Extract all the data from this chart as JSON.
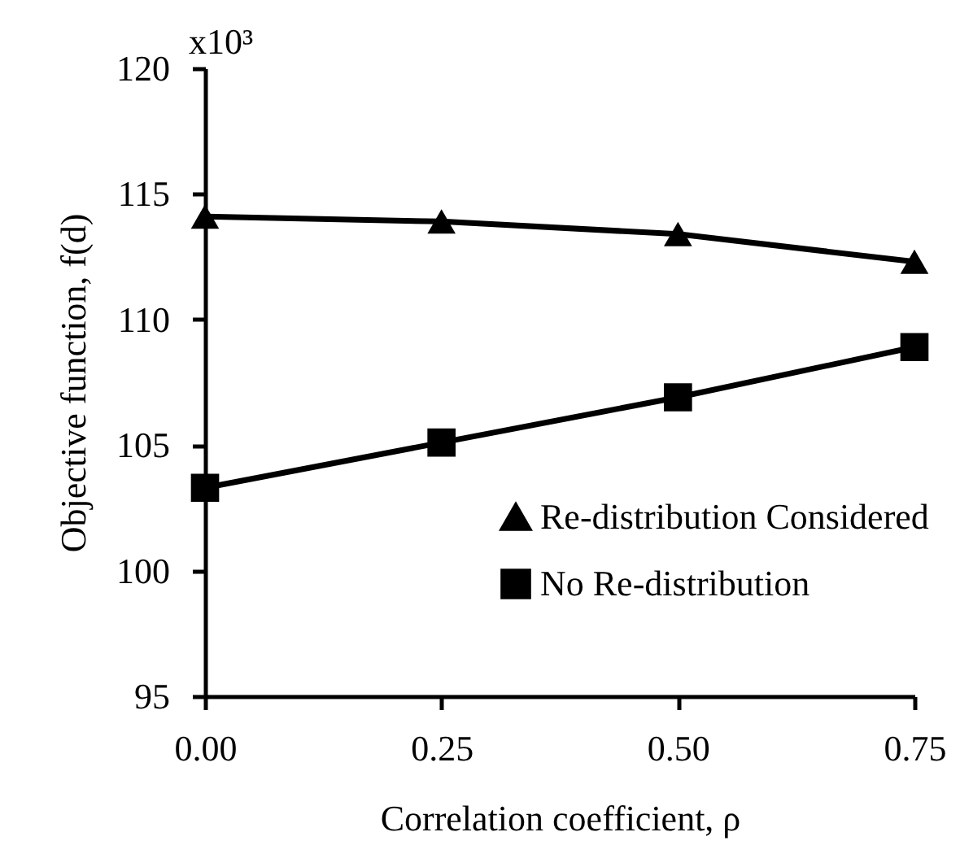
{
  "chart_data": {
    "type": "line",
    "xlabel": "Correlation coefficient, ρ",
    "ylabel": "Objective function, f(d)",
    "x": [
      0,
      0.25,
      0.5,
      0.75
    ],
    "series": [
      {
        "name": "Re-distribution Considered",
        "color": "#000000",
        "marker": "triangle",
        "values": [
          114.1,
          113.9,
          113.4,
          112.3
        ]
      },
      {
        "name": "No Re-distribution",
        "color": "#000000",
        "marker": "square",
        "values": [
          103.3,
          105.1,
          106.9,
          108.9
        ]
      }
    ],
    "xlim": [
      0,
      0.75
    ],
    "xticks": [
      {
        "value": 0,
        "label": "0.00"
      },
      {
        "value": 0.25,
        "label": "0.25"
      },
      {
        "value": 0.5,
        "label": "0.50"
      },
      {
        "value": 0.75,
        "label": "0.75"
      }
    ],
    "ylim": [
      95,
      120
    ],
    "yticks": [
      95,
      100,
      105,
      110,
      115,
      120
    ],
    "grid": false,
    "legend": "bottom right",
    "line_style": "solid",
    "annotations": [
      "x10³"
    ]
  }
}
